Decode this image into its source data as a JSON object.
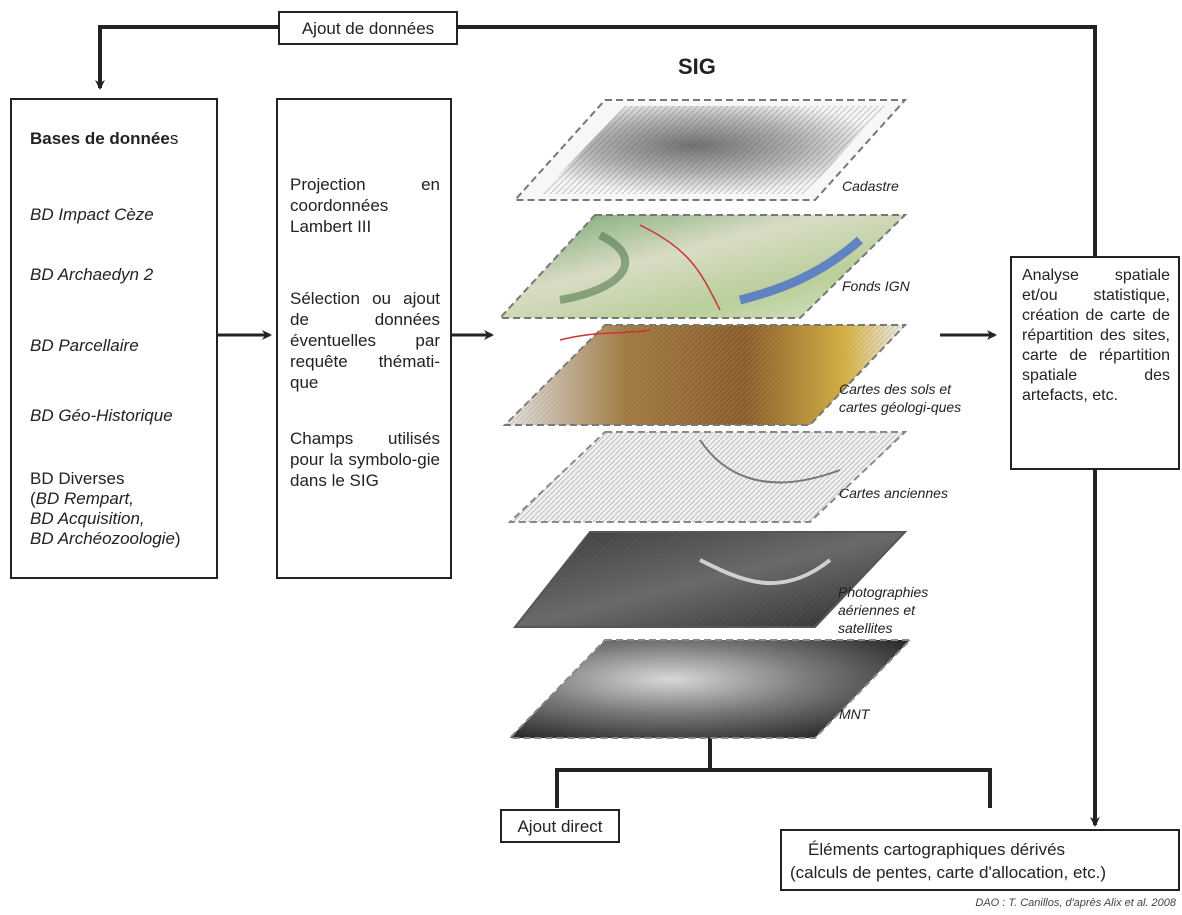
{
  "top_label": "Ajout de données",
  "title": "SIG",
  "databases": {
    "heading_bold": "Bases de donnée",
    "heading_tail": "s",
    "items": [
      "BD Impact Cèze",
      "BD Archaedyn 2",
      "BD Parcellaire",
      "BD Géo-Historique"
    ],
    "diverses_head": "BD Diverses",
    "diverses_open": "(",
    "diverses_lines": [
      "BD Rempart,",
      "BD Acquisition,",
      "BD Archéozoologie"
    ],
    "diverses_close": ")"
  },
  "processing": {
    "p1": "Projection en coordonnées Lambert III",
    "p2": "Sélection ou ajout de données éventuelles par requête thémati-que",
    "p3": "Champs utilisés pour la symbolo-gie dans le SIG"
  },
  "layers": [
    "Cadastre",
    "Fonds IGN",
    "Cartes des sols et cartes géologi-ques",
    "Cartes anciennes",
    "Photographies aériennes et satellites",
    "MNT"
  ],
  "analysis": "Analyse spatiale et/ou statistique, création de carte de répartition des sites, carte de répartition spatiale des artefacts, etc.",
  "ajout_direct": "Ajout direct",
  "derived": {
    "line1": "Éléments cartographiques dérivés",
    "line2": "(calculs de pentes, carte d'allocation, etc.)"
  },
  "credit": "DAO : T. Canillos, d'après  Alix et al. 2008"
}
